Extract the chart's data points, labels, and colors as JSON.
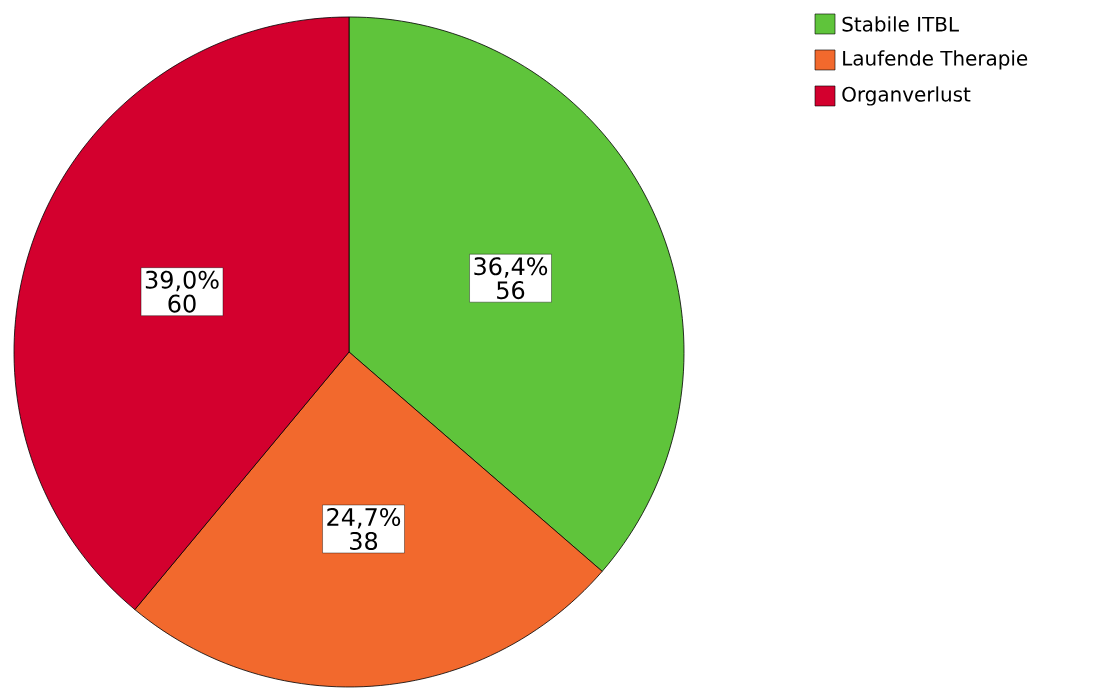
{
  "chart_data": {
    "type": "pie",
    "categories": [
      "Stabile ITBL",
      "Laufende Therapie",
      "Organverlust"
    ],
    "values": [
      36.4,
      24.7,
      39.0
    ],
    "colors": [
      "#5fc43b",
      "#f2692d",
      "#d3002e"
    ],
    "value_labels": [
      "36,4%",
      "24,7%",
      "39,0%"
    ],
    "annotations": [
      {
        "text": "56",
        "x": "Stabile ITBL"
      },
      {
        "text": "38",
        "x": "Laufende Therapie"
      },
      {
        "text": "60",
        "x": "Organverlust"
      }
    ],
    "legend": "top right"
  }
}
